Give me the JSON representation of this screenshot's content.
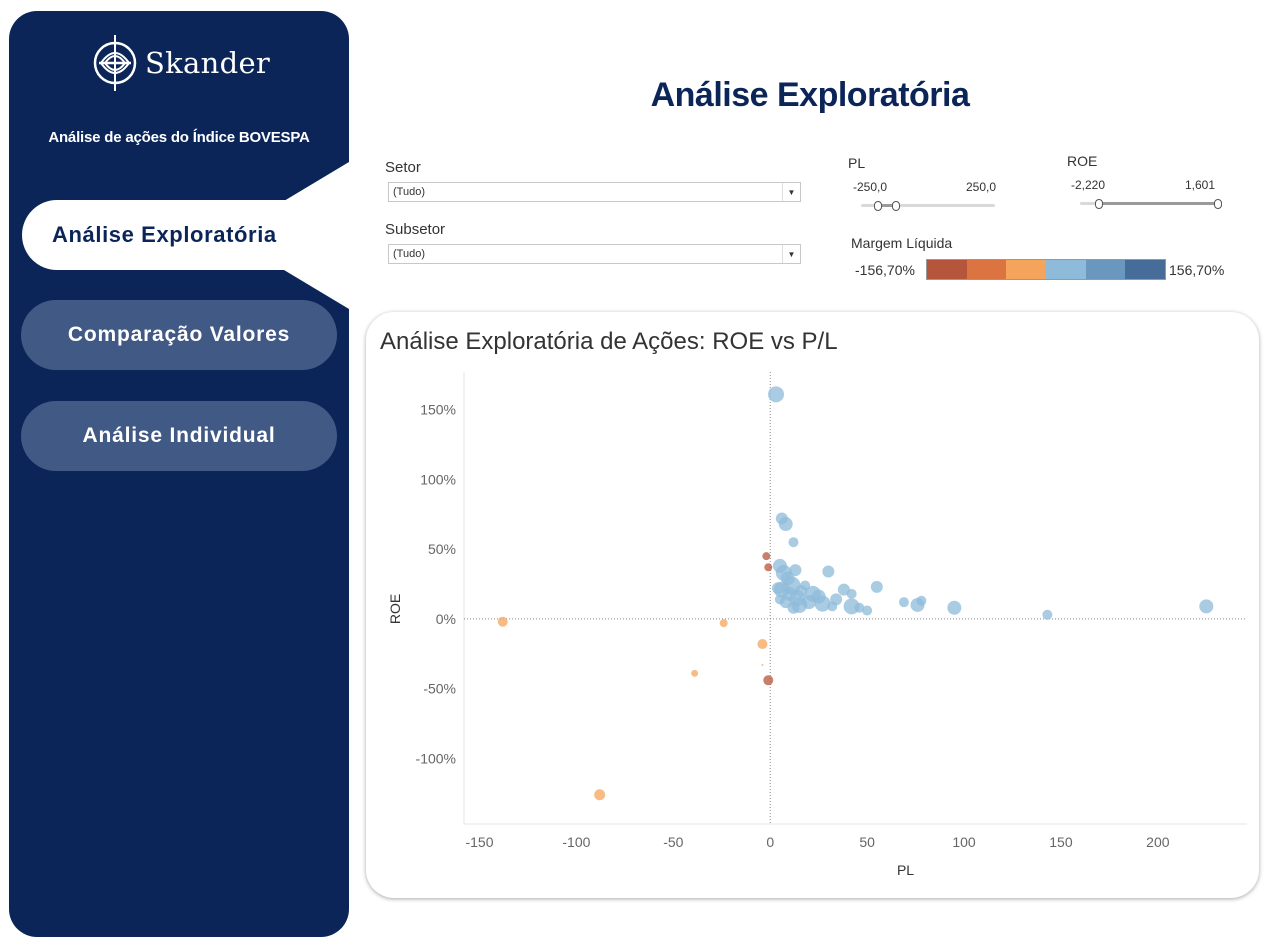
{
  "brand": {
    "name": "Skander",
    "subtitle": "Análise de ações do Índice BOVESPA"
  },
  "nav": {
    "active": "Análise Exploratória",
    "items": [
      "Comparação Valores",
      "Análise Individual"
    ]
  },
  "page_title": "Análise Exploratória",
  "filters": {
    "setor": {
      "label": "Setor",
      "value": "(Tudo)"
    },
    "subsetor": {
      "label": "Subsetor",
      "value": "(Tudo)"
    },
    "pl": {
      "label": "PL",
      "min": "-250,0",
      "max": "250,0"
    },
    "roe": {
      "label": "ROE",
      "min": "-2,220",
      "max": "1,601"
    },
    "margem": {
      "label": "Margem Líquida",
      "min": "-156,70%",
      "max": "156,70%",
      "colors": [
        "#b5553b",
        "#dc7442",
        "#f5a45b",
        "#8ebbd9",
        "#6a97bd",
        "#466d99"
      ]
    }
  },
  "chart_data": {
    "type": "scatter",
    "title": "Análise Exploratória de Ações: ROE vs P/L",
    "xlabel": "PL",
    "ylabel": "ROE",
    "xlim": [
      -158,
      246
    ],
    "ylim": [
      -147,
      177
    ],
    "x_ticks": [
      -150,
      -100,
      -50,
      0,
      50,
      100,
      150,
      200
    ],
    "x_tick_labels": [
      "-150",
      "-100",
      "-50",
      "0",
      "50",
      "100",
      "150",
      "200"
    ],
    "y_ticks": [
      150,
      100,
      50,
      0,
      -50,
      -100
    ],
    "y_tick_labels": [
      "150%",
      "100%",
      "50%",
      "0%",
      "-50%",
      "-100%"
    ],
    "color_field": "Margem Líquida",
    "points": [
      {
        "x": 3,
        "y": 161,
        "size": 8,
        "color": "#8ebbd9"
      },
      {
        "x": 6,
        "y": 72,
        "size": 6,
        "color": "#8ebbd9"
      },
      {
        "x": 8,
        "y": 68,
        "size": 7,
        "color": "#8ebbd9"
      },
      {
        "x": 12,
        "y": 55,
        "size": 5,
        "color": "#8ebbd9"
      },
      {
        "x": 5,
        "y": 38,
        "size": 7,
        "color": "#8ebbd9"
      },
      {
        "x": 7,
        "y": 33,
        "size": 8,
        "color": "#8ebbd9"
      },
      {
        "x": 9,
        "y": 29,
        "size": 7,
        "color": "#8ebbd9"
      },
      {
        "x": 11,
        "y": 24,
        "size": 9,
        "color": "#8ebbd9"
      },
      {
        "x": 13,
        "y": 35,
        "size": 6,
        "color": "#8ebbd9"
      },
      {
        "x": 6,
        "y": 21,
        "size": 8,
        "color": "#8ebbd9"
      },
      {
        "x": 10,
        "y": 18,
        "size": 7,
        "color": "#8ebbd9"
      },
      {
        "x": 14,
        "y": 15,
        "size": 8,
        "color": "#8ebbd9"
      },
      {
        "x": 16,
        "y": 20,
        "size": 6,
        "color": "#8ebbd9"
      },
      {
        "x": 18,
        "y": 24,
        "size": 5,
        "color": "#8ebbd9"
      },
      {
        "x": 20,
        "y": 12,
        "size": 7,
        "color": "#8ebbd9"
      },
      {
        "x": 22,
        "y": 18,
        "size": 8,
        "color": "#8ebbd9"
      },
      {
        "x": 25,
        "y": 16,
        "size": 7,
        "color": "#8ebbd9"
      },
      {
        "x": 27,
        "y": 11,
        "size": 8,
        "color": "#8ebbd9"
      },
      {
        "x": 15,
        "y": 10,
        "size": 8,
        "color": "#8ebbd9"
      },
      {
        "x": 8,
        "y": 12,
        "size": 6,
        "color": "#8ebbd9"
      },
      {
        "x": 12,
        "y": 8,
        "size": 6,
        "color": "#8ebbd9"
      },
      {
        "x": 4,
        "y": 22,
        "size": 6,
        "color": "#8ebbd9"
      },
      {
        "x": 5,
        "y": 14,
        "size": 5,
        "color": "#8ebbd9"
      },
      {
        "x": 30,
        "y": 34,
        "size": 6,
        "color": "#8ebbd9"
      },
      {
        "x": 32,
        "y": 9,
        "size": 5,
        "color": "#8ebbd9"
      },
      {
        "x": 34,
        "y": 14,
        "size": 6,
        "color": "#8ebbd9"
      },
      {
        "x": 38,
        "y": 21,
        "size": 6,
        "color": "#8ebbd9"
      },
      {
        "x": 42,
        "y": 18,
        "size": 5,
        "color": "#8ebbd9"
      },
      {
        "x": 42,
        "y": 9,
        "size": 8,
        "color": "#8ebbd9"
      },
      {
        "x": 46,
        "y": 8,
        "size": 5,
        "color": "#8ebbd9"
      },
      {
        "x": 50,
        "y": 6,
        "size": 5,
        "color": "#8ebbd9"
      },
      {
        "x": 55,
        "y": 23,
        "size": 6,
        "color": "#8ebbd9"
      },
      {
        "x": 69,
        "y": 12,
        "size": 5,
        "color": "#8ebbd9"
      },
      {
        "x": 76,
        "y": 10,
        "size": 7,
        "color": "#8ebbd9"
      },
      {
        "x": 78,
        "y": 13,
        "size": 5,
        "color": "#8ebbd9"
      },
      {
        "x": 95,
        "y": 8,
        "size": 7,
        "color": "#8ebbd9"
      },
      {
        "x": 143,
        "y": 3,
        "size": 5,
        "color": "#8ebbd9"
      },
      {
        "x": 225,
        "y": 9,
        "size": 7,
        "color": "#8ebbd9"
      },
      {
        "x": -2,
        "y": 45,
        "size": 4,
        "color": "#b5553b"
      },
      {
        "x": -1,
        "y": 37,
        "size": 4,
        "color": "#b5553b"
      },
      {
        "x": -1,
        "y": -44,
        "size": 5,
        "color": "#b5553b"
      },
      {
        "x": -138,
        "y": -2,
        "size": 5,
        "color": "#f5a45b"
      },
      {
        "x": -24,
        "y": -3,
        "size": 4,
        "color": "#f5a45b"
      },
      {
        "x": -4,
        "y": -18,
        "size": 5,
        "color": "#f5a45b"
      },
      {
        "x": -39,
        "y": -39,
        "size": 3.5,
        "color": "#f5a45b"
      },
      {
        "x": -88,
        "y": -126,
        "size": 5.5,
        "color": "#f5a45b"
      },
      {
        "x": -4,
        "y": -33,
        "size": 1,
        "color": "#f5a45b"
      }
    ]
  }
}
